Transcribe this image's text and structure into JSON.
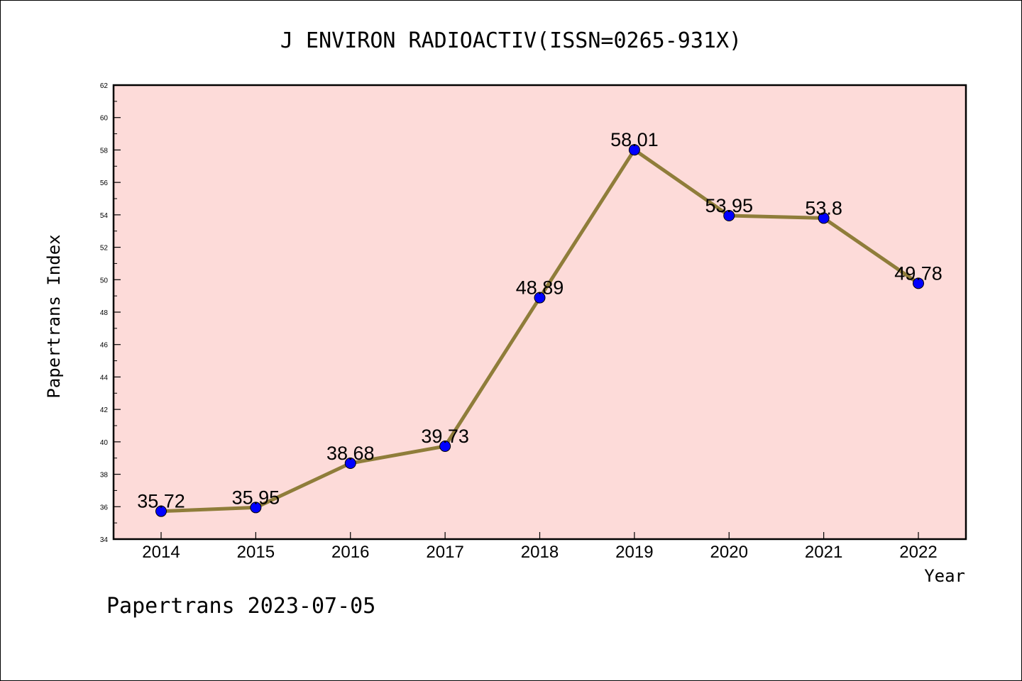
{
  "chart_data": {
    "type": "line",
    "title": "J ENVIRON RADIOACTIV(ISSN=0265-931X)",
    "xlabel": "Year",
    "ylabel": "Papertrans Index",
    "categories": [
      "2014",
      "2015",
      "2016",
      "2017",
      "2018",
      "2019",
      "2020",
      "2021",
      "2022"
    ],
    "series": [
      {
        "values": [
          35.72,
          35.95,
          38.68,
          39.73,
          48.89,
          58.01,
          53.95,
          53.8,
          49.78
        ]
      }
    ],
    "data_labels": [
      "35.72",
      "35.95",
      "38.68",
      "39.73",
      "48.89",
      "58.01",
      "53.95",
      "53.8",
      "49.78"
    ],
    "ylim": [
      34,
      62
    ],
    "yticks": [
      "34",
      "36",
      "38",
      "40",
      "42",
      "44",
      "46",
      "48",
      "50",
      "52",
      "54",
      "56",
      "58",
      "60",
      "62"
    ],
    "grid": false,
    "colors": {
      "plot_background": "#fddbd9",
      "line": "#8f7d3a",
      "marker": "#0000ff",
      "axis": "#000000"
    }
  },
  "footer": "Papertrans 2023-07-05"
}
